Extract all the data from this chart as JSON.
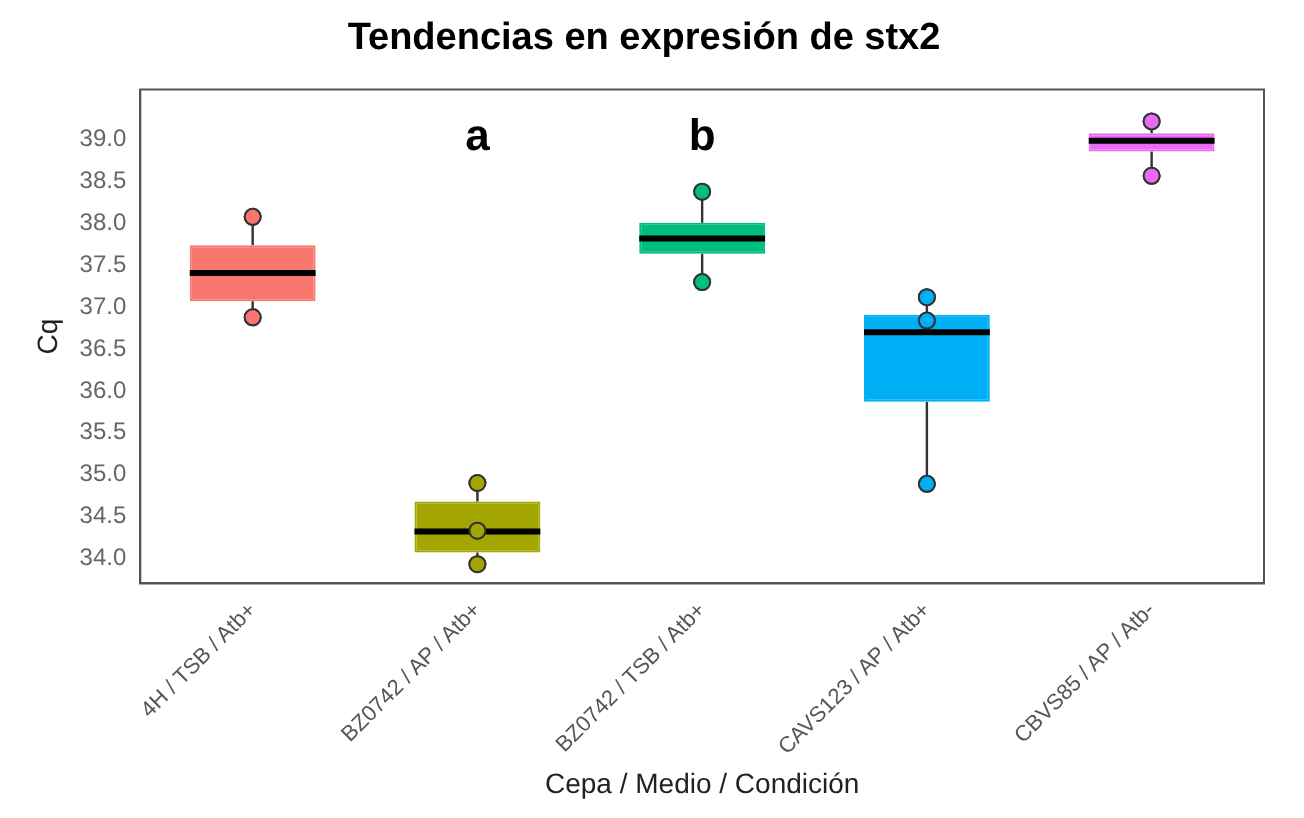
{
  "chart_data": {
    "type": "box",
    "title": "Tendencias en expresión de stx2",
    "xlabel": "Cepa / Medio / Condición",
    "ylabel": "Cq",
    "categories": [
      "4H / TSB / Atb+",
      "BZ0742 / AP / Atb+",
      "BZ0742 / TSB / Atb+",
      "CAVS123 / AP / Atb+",
      "CBVS85 / AP / Atb-"
    ],
    "colors": [
      "#f8766d",
      "#a3a500",
      "#00bf7d",
      "#00b0f6",
      "#e76bf3"
    ],
    "boxes": [
      {
        "low": 36.88,
        "q1": 37.07,
        "median": 37.41,
        "q3": 37.74,
        "high": 38.08
      },
      {
        "low": 33.93,
        "q1": 34.07,
        "median": 34.32,
        "q3": 34.68,
        "high": 34.9
      },
      {
        "low": 37.3,
        "q1": 37.64,
        "median": 37.82,
        "q3": 38.01,
        "high": 38.38
      },
      {
        "low": 34.89,
        "q1": 35.87,
        "median": 36.7,
        "q3": 36.91,
        "high": 37.12
      },
      {
        "low": 38.57,
        "q1": 38.86,
        "median": 38.99,
        "q3": 39.08,
        "high": 39.22
      }
    ],
    "series": [
      {
        "type": "scatter",
        "x": [
          "4H / TSB / Atb+",
          "4H / TSB / Atb+",
          "BZ0742 / AP / Atb+",
          "BZ0742 / AP / Atb+",
          "BZ0742 / AP / Atb+",
          "BZ0742 / TSB / Atb+",
          "BZ0742 / TSB / Atb+",
          "CAVS123 / AP / Atb+",
          "CAVS123 / AP / Atb+",
          "CAVS123 / AP / Atb+",
          "CBVS85 / AP / Atb-",
          "CBVS85 / AP / Atb-"
        ],
        "values": [
          38.08,
          36.88,
          34.9,
          34.33,
          33.93,
          38.38,
          37.3,
          37.12,
          36.84,
          34.89,
          39.22,
          38.57
        ],
        "colors": [
          "#f8766d",
          "#f8766d",
          "#a3a500",
          "#a3a500",
          "#a3a500",
          "#00bf7d",
          "#00bf7d",
          "#00b0f6",
          "#00b0f6",
          "#00b0f6",
          "#e76bf3",
          "#e76bf3"
        ]
      }
    ],
    "ylim": [
      33.7,
      39.6
    ],
    "yticks": [
      {
        "value": 34,
        "label": "34.0"
      },
      {
        "value": 34.5,
        "label": "34.5"
      },
      {
        "value": 35,
        "label": "35.0"
      },
      {
        "value": 35.5,
        "label": "35.5"
      },
      {
        "value": 36,
        "label": "36.0"
      },
      {
        "value": 36.5,
        "label": "36.5"
      },
      {
        "value": 37,
        "label": "37.0"
      },
      {
        "value": 37.5,
        "label": "37.5"
      },
      {
        "value": 38,
        "label": "38.0"
      },
      {
        "value": 38.5,
        "label": "38.5"
      },
      {
        "value": 39,
        "label": "39.0"
      }
    ],
    "annotations": [
      "a",
      "b"
    ],
    "grid": false,
    "legend": false,
    "marker": "circle"
  }
}
